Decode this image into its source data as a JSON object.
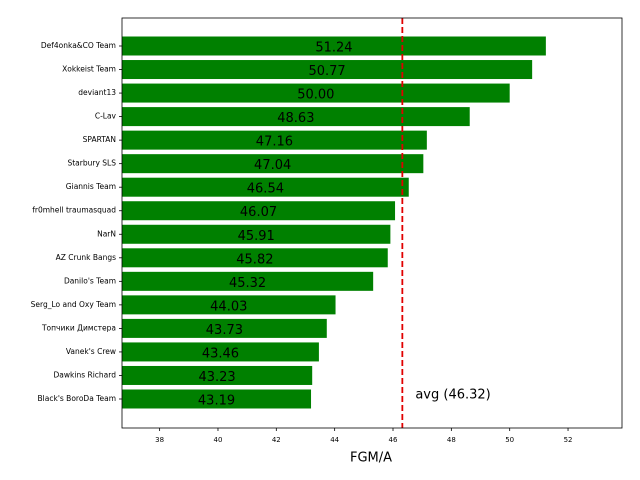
{
  "chart_data": {
    "type": "barh",
    "x_label": "FGM/A",
    "categories": [
      "Def4onka&CO Team",
      "Xokkeist Team",
      "deviant13",
      "C-Lav",
      "SPARTAN",
      "Starbury SLS",
      "Giannis Team",
      "fr0mhell traumasquad",
      "NarN",
      "AZ Crunk Bangs",
      "Danilo's Team",
      "Serg_Lo and Oxy Team",
      "Топчики Димстера",
      "Vanek's Crew",
      "Dawkins Richard",
      "Black's BoroDa Team"
    ],
    "values": [
      51.24,
      50.77,
      50.0,
      48.63,
      47.16,
      47.04,
      46.54,
      46.07,
      45.91,
      45.82,
      45.32,
      44.03,
      43.73,
      43.46,
      43.23,
      43.19
    ],
    "value_labels": [
      "51.24",
      "50.77",
      "50.00",
      "48.63",
      "47.16",
      "47.04",
      "46.54",
      "46.07",
      "45.91",
      "45.82",
      "45.32",
      "44.03",
      "43.73",
      "43.46",
      "43.23",
      "43.19"
    ],
    "color": "#008000",
    "xlim": [
      36.71,
      53.85
    ],
    "xticks": [
      38,
      40,
      42,
      44,
      46,
      48,
      50,
      52
    ],
    "avg": 46.32,
    "avg_label": "avg (46.32)",
    "avg_color": "#e00000"
  }
}
